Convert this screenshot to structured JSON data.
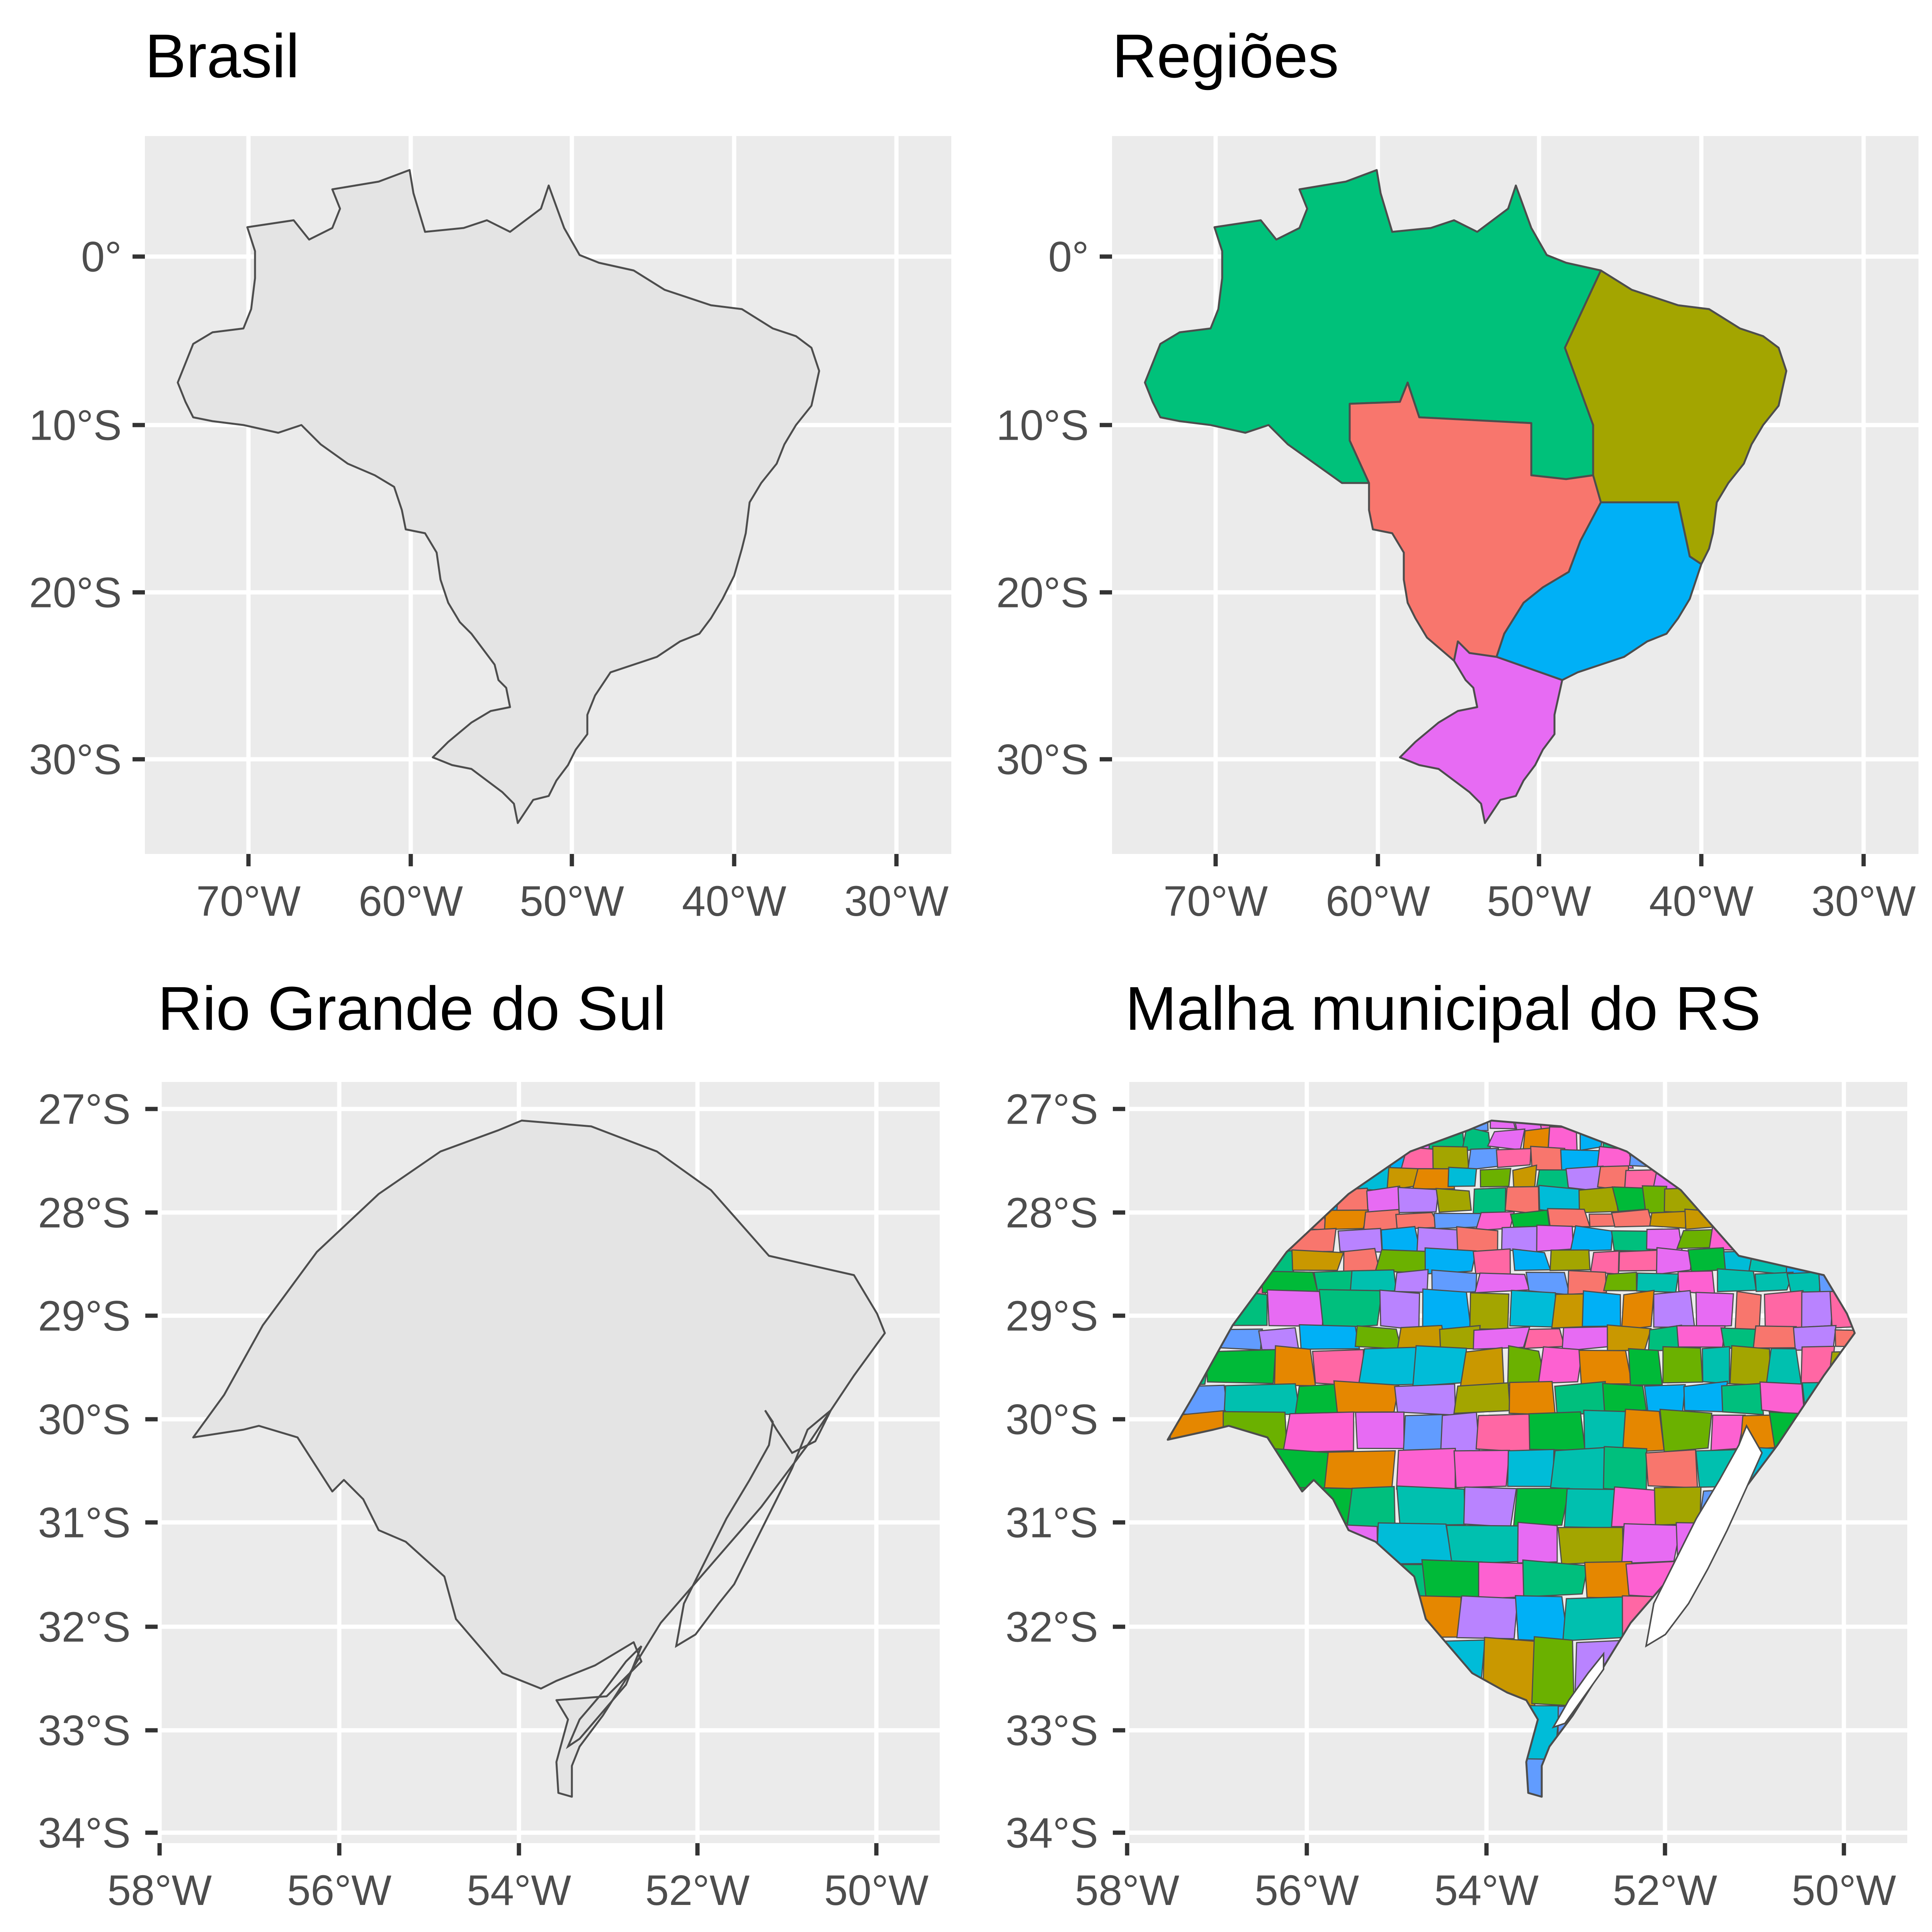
{
  "colors": {
    "panel_bg": "#ebebeb",
    "grid": "#ffffff",
    "outline": "#4d4d4d",
    "land_fill": "#e4e4e4",
    "tick_text": "#4d4d4d",
    "title_text": "#000000"
  },
  "panels": [
    {
      "id": "brasil",
      "title": "Brasil",
      "x_ticks": [
        "70°W",
        "60°W",
        "50°W",
        "40°W",
        "30°W"
      ],
      "y_ticks": [
        "0°",
        "10°S",
        "20°S",
        "30°S"
      ],
      "fill": "single"
    },
    {
      "id": "regioes",
      "title": "Regiões",
      "x_ticks": [
        "70°W",
        "60°W",
        "50°W",
        "40°W",
        "30°W"
      ],
      "y_ticks": [
        "0°",
        "10°S",
        "20°S",
        "30°S"
      ],
      "fill": "regions",
      "region_colors": {
        "north": "#00c17a",
        "northeast": "#a3a500",
        "central_west": "#f8766d",
        "southeast": "#00b0f6",
        "south": "#e76bf3"
      }
    },
    {
      "id": "rs",
      "title": "Rio Grande do Sul",
      "x_ticks": [
        "58°W",
        "56°W",
        "54°W",
        "52°W",
        "50°W"
      ],
      "y_ticks": [
        "27°S",
        "28°S",
        "29°S",
        "30°S",
        "31°S",
        "32°S",
        "33°S",
        "34°S"
      ],
      "fill": "single"
    },
    {
      "id": "rs_municipios",
      "title": "Malha municipal do RS",
      "x_ticks": [
        "58°W",
        "56°W",
        "54°W",
        "52°W",
        "50°W"
      ],
      "y_ticks": [
        "27°S",
        "28°S",
        "29°S",
        "30°S",
        "31°S",
        "32°S",
        "33°S",
        "34°S"
      ],
      "fill": "municipalities",
      "municipality_palette": [
        "#f8766d",
        "#e58700",
        "#c99800",
        "#a3a500",
        "#6bb100",
        "#00ba38",
        "#00bf7d",
        "#00c0af",
        "#00bcd8",
        "#00b0f6",
        "#619cff",
        "#b983ff",
        "#e76bf3",
        "#fd61d1",
        "#ff67a4"
      ]
    }
  ]
}
